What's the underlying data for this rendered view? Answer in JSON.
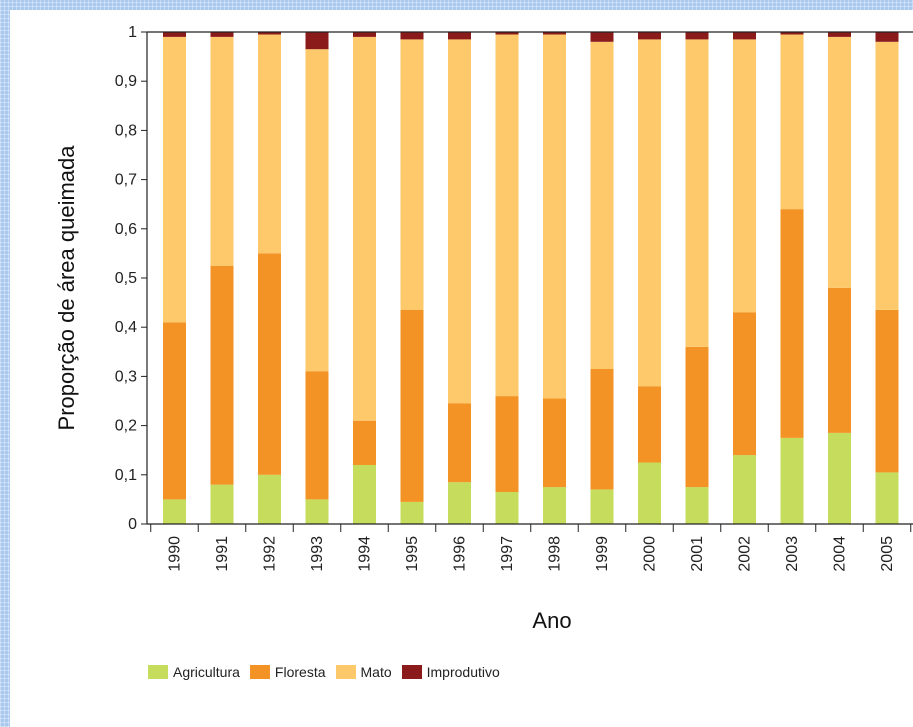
{
  "chart_data": {
    "type": "bar",
    "stacked": true,
    "categories": [
      "1990",
      "1991",
      "1992",
      "1993",
      "1994",
      "1995",
      "1996",
      "1997",
      "1998",
      "1999",
      "2000",
      "2001",
      "2002",
      "2003",
      "2004",
      "2005"
    ],
    "series": [
      {
        "name": "Agricultura",
        "color": "#c5dc5c",
        "values": [
          0.05,
          0.08,
          0.1,
          0.05,
          0.12,
          0.045,
          0.085,
          0.065,
          0.075,
          0.07,
          0.125,
          0.075,
          0.14,
          0.175,
          0.185,
          0.105
        ]
      },
      {
        "name": "Floresta",
        "color": "#f39325",
        "values": [
          0.36,
          0.445,
          0.45,
          0.26,
          0.09,
          0.39,
          0.16,
          0.195,
          0.18,
          0.245,
          0.155,
          0.285,
          0.29,
          0.465,
          0.295,
          0.33
        ]
      },
      {
        "name": "Mato",
        "color": "#fdc96b",
        "values": [
          0.58,
          0.465,
          0.445,
          0.655,
          0.78,
          0.55,
          0.74,
          0.735,
          0.74,
          0.665,
          0.705,
          0.625,
          0.555,
          0.355,
          0.51,
          0.545
        ]
      },
      {
        "name": "Improdutivo",
        "color": "#8b1a1a",
        "values": [
          0.01,
          0.01,
          0.005,
          0.035,
          0.01,
          0.015,
          0.015,
          0.005,
          0.005,
          0.02,
          0.015,
          0.015,
          0.015,
          0.005,
          0.01,
          0.02
        ]
      }
    ],
    "ylim": [
      0,
      1
    ],
    "yticks": [
      "0",
      "0,1",
      "0,2",
      "0,3",
      "0,4",
      "0,5",
      "0,6",
      "0,7",
      "0,8",
      "0,9",
      "1"
    ],
    "xlabel": "Ano",
    "ylabel": "Proporção de área queimada",
    "grid": false,
    "legend_position": "bottom-left"
  }
}
